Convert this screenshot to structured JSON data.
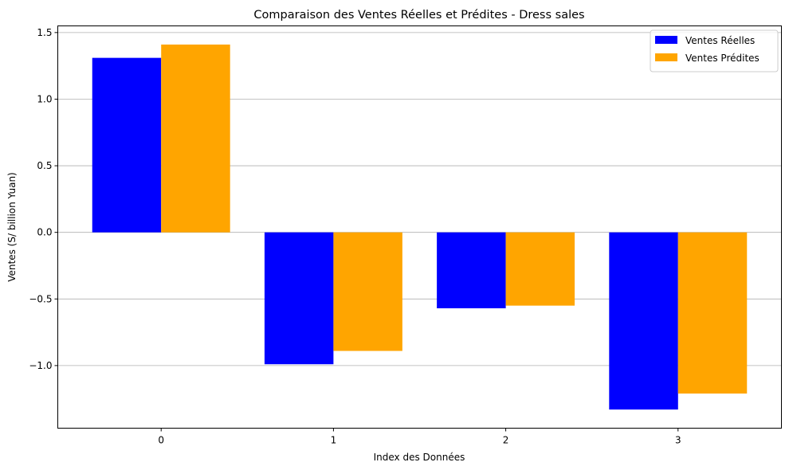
{
  "chart_data": {
    "type": "bar",
    "title": "Comparaison des Ventes Réelles et Prédites - Dress sales",
    "xlabel": "Index des Données",
    "ylabel": "Ventes (S/ billion Yuan)",
    "categories": [
      "0",
      "1",
      "2",
      "3"
    ],
    "series": [
      {
        "name": "Ventes Réelles",
        "color": "#0000ff",
        "values": [
          1.31,
          -0.99,
          -0.57,
          -1.33
        ]
      },
      {
        "name": "Ventes Prédites",
        "color": "#ffa500",
        "values": [
          1.41,
          -0.89,
          -0.55,
          -1.21
        ]
      }
    ],
    "ylim": [
      -1.47,
      1.55
    ],
    "yticks": [
      1.5,
      1.0,
      0.5,
      0.0,
      -0.5,
      -1.0
    ],
    "ytick_labels": [
      "1.5",
      "1.0",
      "0.5",
      "0.0",
      "−0.5",
      "−1.0"
    ],
    "grid": "horizontal",
    "legend_position": "top-right"
  }
}
